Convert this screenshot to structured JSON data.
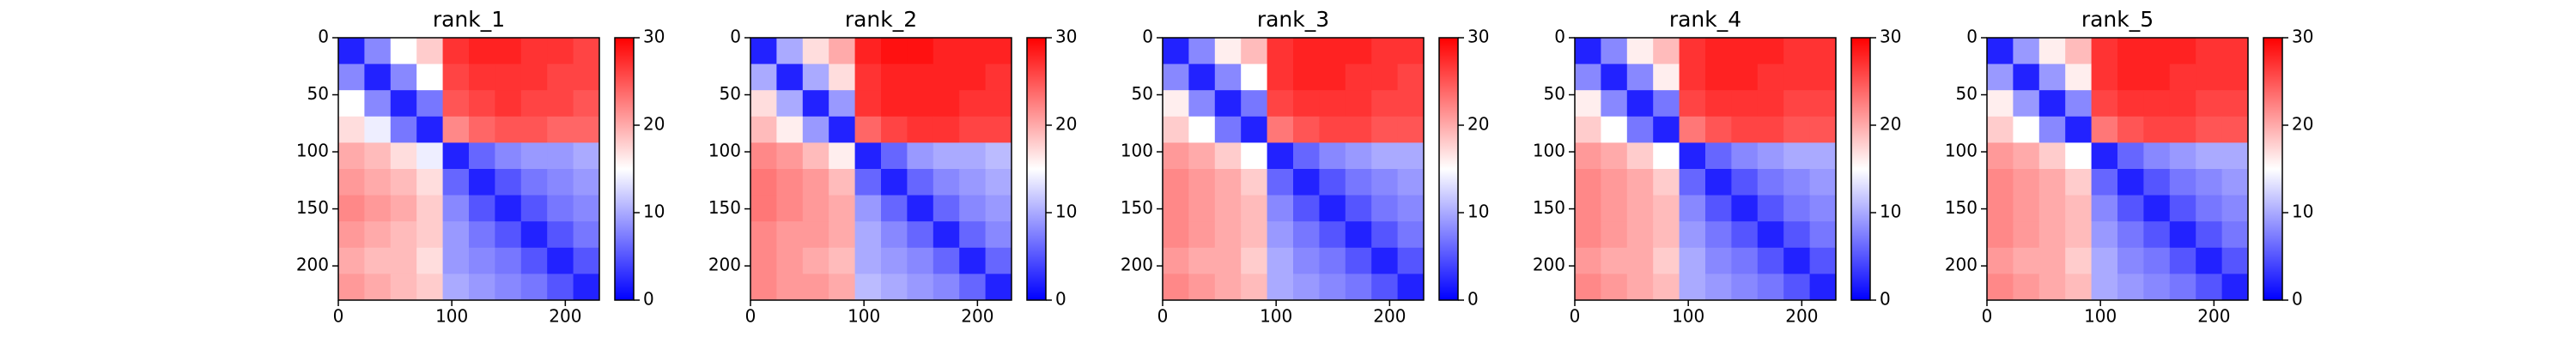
{
  "chart_data": [
    {
      "type": "heatmap",
      "title": "rank_1",
      "cmap": "bwr",
      "xlim": [
        0,
        230
      ],
      "ylim": [
        230,
        0
      ],
      "xticks": [
        0,
        100,
        200
      ],
      "yticks": [
        0,
        50,
        100,
        150,
        200
      ],
      "clim": [
        0,
        30
      ],
      "cticks": [
        0,
        10,
        20,
        30
      ],
      "z": [
        [
          2,
          8,
          15,
          18,
          27,
          28,
          28,
          27,
          27,
          26
        ],
        [
          8,
          2,
          8,
          15,
          26,
          27,
          27,
          27,
          26,
          26
        ],
        [
          15,
          8,
          2,
          7,
          25,
          26,
          27,
          26,
          26,
          25
        ],
        [
          17,
          14,
          7,
          2,
          22,
          24,
          25,
          25,
          24,
          24
        ],
        [
          20,
          19,
          17,
          14,
          2,
          6,
          8,
          9,
          9,
          10
        ],
        [
          21,
          20,
          19,
          17,
          6,
          2,
          5,
          7,
          8,
          9
        ],
        [
          22,
          21,
          20,
          18,
          8,
          5,
          2,
          5,
          7,
          8
        ],
        [
          21,
          20,
          19,
          18,
          9,
          7,
          5,
          2,
          5,
          7
        ],
        [
          20,
          19,
          19,
          17,
          9,
          8,
          7,
          5,
          2,
          5
        ],
        [
          21,
          20,
          19,
          18,
          10,
          9,
          8,
          7,
          5,
          2
        ]
      ]
    },
    {
      "type": "heatmap",
      "title": "rank_2",
      "cmap": "bwr",
      "xlim": [
        0,
        230
      ],
      "ylim": [
        230,
        0
      ],
      "xticks": [
        0,
        100,
        200
      ],
      "yticks": [
        0,
        50,
        100,
        150,
        200
      ],
      "clim": [
        0,
        30
      ],
      "cticks": [
        0,
        10,
        20,
        30
      ],
      "z": [
        [
          2,
          10,
          17,
          20,
          28,
          29,
          29,
          28,
          28,
          28
        ],
        [
          10,
          2,
          10,
          17,
          27,
          28,
          28,
          28,
          28,
          27
        ],
        [
          17,
          10,
          2,
          9,
          27,
          28,
          28,
          28,
          27,
          27
        ],
        [
          19,
          16,
          9,
          2,
          24,
          26,
          27,
          27,
          26,
          26
        ],
        [
          22,
          21,
          19,
          16,
          2,
          6,
          9,
          10,
          10,
          11
        ],
        [
          23,
          22,
          21,
          19,
          6,
          2,
          6,
          8,
          9,
          10
        ],
        [
          23,
          22,
          21,
          20,
          9,
          6,
          2,
          6,
          8,
          9
        ],
        [
          22,
          21,
          21,
          20,
          10,
          8,
          6,
          2,
          6,
          8
        ],
        [
          22,
          21,
          20,
          19,
          10,
          9,
          8,
          6,
          2,
          6
        ],
        [
          22,
          21,
          21,
          20,
          11,
          10,
          9,
          8,
          6,
          2
        ]
      ]
    },
    {
      "type": "heatmap",
      "title": "rank_3",
      "cmap": "bwr",
      "xlim": [
        0,
        230
      ],
      "ylim": [
        230,
        0
      ],
      "xticks": [
        0,
        100,
        200
      ],
      "yticks": [
        0,
        50,
        100,
        150,
        200
      ],
      "clim": [
        0,
        30
      ],
      "cticks": [
        0,
        10,
        20,
        30
      ],
      "z": [
        [
          2,
          8,
          16,
          19,
          27,
          28,
          28,
          28,
          27,
          27
        ],
        [
          8,
          2,
          8,
          15,
          27,
          28,
          28,
          27,
          27,
          26
        ],
        [
          16,
          8,
          2,
          7,
          26,
          27,
          27,
          27,
          26,
          26
        ],
        [
          18,
          15,
          7,
          2,
          23,
          25,
          26,
          26,
          25,
          25
        ],
        [
          21,
          20,
          18,
          15,
          2,
          6,
          8,
          9,
          10,
          10
        ],
        [
          22,
          21,
          20,
          18,
          6,
          2,
          5,
          7,
          8,
          9
        ],
        [
          22,
          21,
          20,
          19,
          8,
          5,
          2,
          5,
          7,
          8
        ],
        [
          22,
          21,
          20,
          19,
          9,
          7,
          5,
          2,
          5,
          7
        ],
        [
          21,
          20,
          20,
          18,
          10,
          8,
          7,
          5,
          2,
          5
        ],
        [
          22,
          21,
          20,
          19,
          10,
          9,
          8,
          7,
          5,
          2
        ]
      ]
    },
    {
      "type": "heatmap",
      "title": "rank_4",
      "cmap": "bwr",
      "xlim": [
        0,
        230
      ],
      "ylim": [
        230,
        0
      ],
      "xticks": [
        0,
        100,
        200
      ],
      "yticks": [
        0,
        50,
        100,
        150,
        200
      ],
      "clim": [
        0,
        30
      ],
      "cticks": [
        0,
        10,
        20,
        30
      ],
      "z": [
        [
          2,
          8,
          16,
          19,
          27,
          28,
          28,
          28,
          27,
          27
        ],
        [
          8,
          2,
          8,
          16,
          27,
          28,
          28,
          27,
          27,
          27
        ],
        [
          16,
          8,
          2,
          7,
          26,
          27,
          27,
          27,
          26,
          26
        ],
        [
          18,
          15,
          7,
          2,
          23,
          25,
          26,
          26,
          25,
          25
        ],
        [
          21,
          20,
          18,
          15,
          2,
          6,
          8,
          9,
          10,
          10
        ],
        [
          22,
          21,
          20,
          18,
          6,
          2,
          5,
          7,
          8,
          9
        ],
        [
          22,
          21,
          20,
          19,
          8,
          5,
          2,
          5,
          7,
          8
        ],
        [
          22,
          21,
          20,
          19,
          9,
          7,
          5,
          2,
          5,
          7
        ],
        [
          21,
          20,
          20,
          18,
          10,
          8,
          7,
          5,
          2,
          5
        ],
        [
          22,
          21,
          20,
          19,
          10,
          9,
          8,
          7,
          5,
          2
        ]
      ]
    },
    {
      "type": "heatmap",
      "title": "rank_5",
      "cmap": "bwr",
      "xlim": [
        0,
        230
      ],
      "ylim": [
        230,
        0
      ],
      "xticks": [
        0,
        100,
        200
      ],
      "yticks": [
        0,
        50,
        100,
        150,
        200
      ],
      "clim": [
        0,
        30
      ],
      "cticks": [
        0,
        10,
        20,
        30
      ],
      "z": [
        [
          2,
          9,
          16,
          19,
          27,
          28,
          28,
          28,
          27,
          27
        ],
        [
          9,
          2,
          9,
          16,
          27,
          28,
          28,
          27,
          27,
          27
        ],
        [
          16,
          9,
          2,
          8,
          26,
          27,
          27,
          27,
          26,
          26
        ],
        [
          18,
          15,
          8,
          2,
          23,
          25,
          26,
          26,
          25,
          25
        ],
        [
          21,
          20,
          18,
          15,
          2,
          6,
          8,
          9,
          10,
          10
        ],
        [
          22,
          21,
          20,
          18,
          6,
          2,
          5,
          7,
          8,
          9
        ],
        [
          22,
          21,
          20,
          19,
          8,
          5,
          2,
          5,
          7,
          8
        ],
        [
          22,
          21,
          20,
          19,
          9,
          7,
          5,
          2,
          5,
          7
        ],
        [
          21,
          20,
          20,
          18,
          10,
          8,
          7,
          5,
          2,
          5
        ],
        [
          22,
          21,
          20,
          19,
          10,
          9,
          8,
          7,
          5,
          2
        ]
      ]
    }
  ]
}
